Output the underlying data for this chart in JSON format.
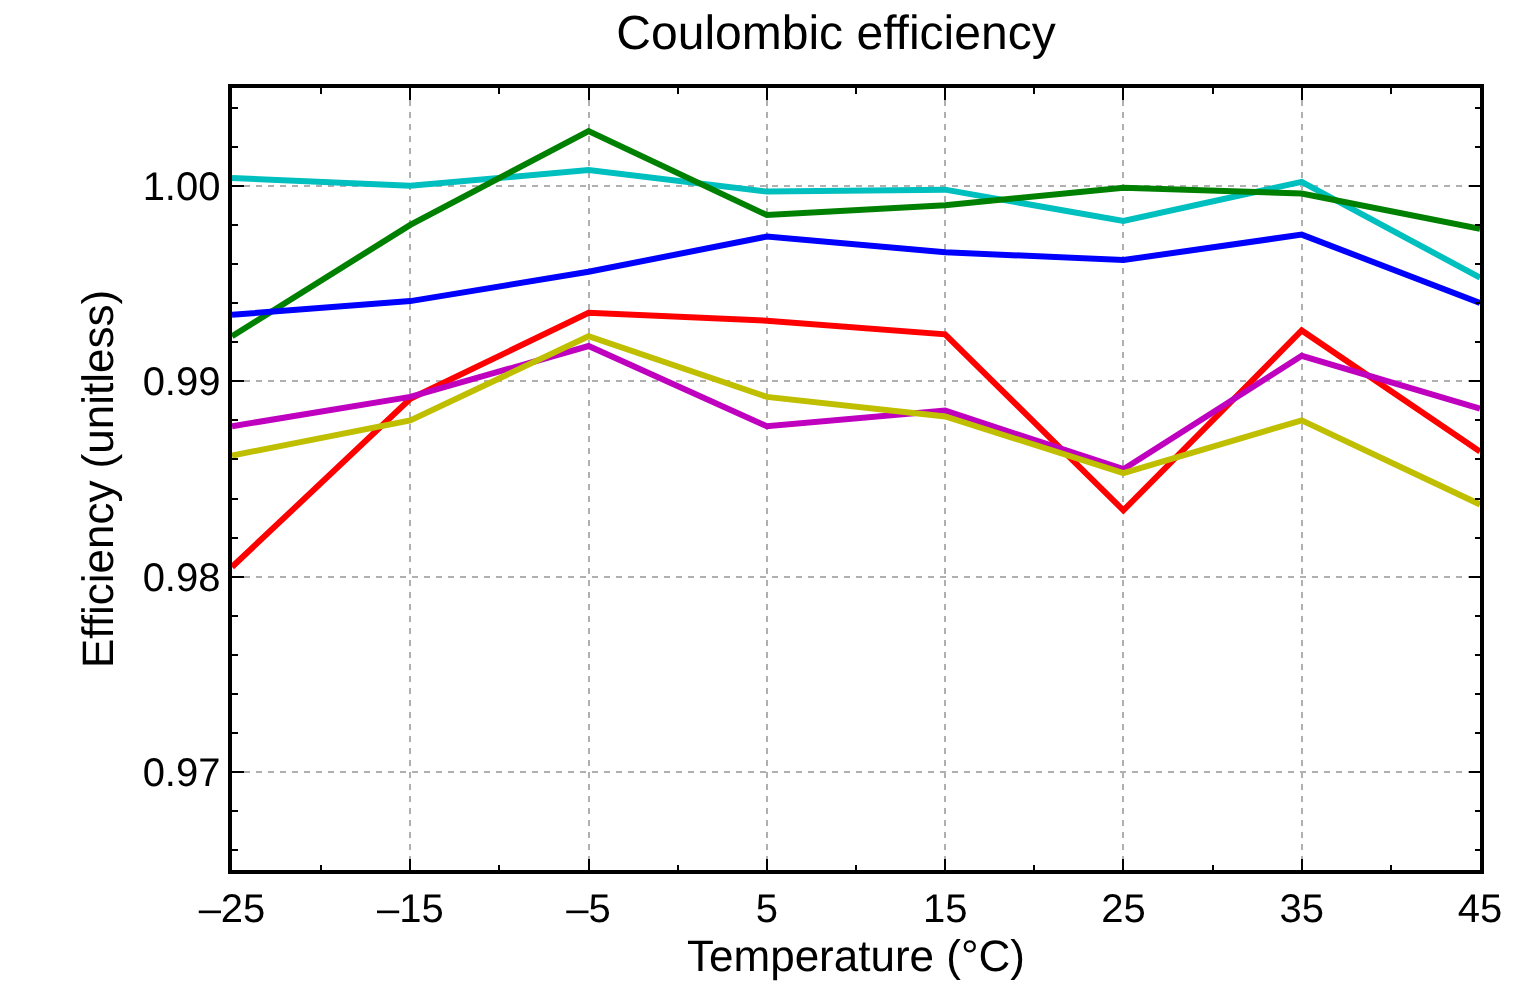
{
  "chart_data": {
    "type": "line",
    "title": "Coulombic efficiency",
    "xlabel": "Temperature (°C)",
    "ylabel": "Efficiency (unitless)",
    "x": [
      -25,
      -15,
      -5,
      5,
      15,
      25,
      35,
      45
    ],
    "series": [
      {
        "color": "#00bfbf",
        "values": [
          1.0004,
          1.0,
          1.0008,
          0.9997,
          0.9998,
          0.9982,
          1.0002,
          0.9953
        ]
      },
      {
        "color": "#008000",
        "values": [
          0.9923,
          0.998,
          1.0028,
          0.9985,
          0.999,
          0.9999,
          0.9996,
          0.9978
        ]
      },
      {
        "color": "#0000ff",
        "values": [
          0.9934,
          0.9941,
          0.9956,
          0.9974,
          0.9966,
          0.9962,
          0.9975,
          0.994
        ]
      },
      {
        "color": "#ff0000",
        "values": [
          0.9805,
          0.9891,
          0.9935,
          0.9931,
          0.9924,
          0.9834,
          0.9926,
          0.9864
        ]
      },
      {
        "color": "#bf00bf",
        "values": [
          0.9877,
          0.9892,
          0.9918,
          0.9877,
          0.9885,
          0.9855,
          0.9913,
          0.9886
        ]
      },
      {
        "color": "#bfbf00",
        "values": [
          0.9862,
          0.988,
          0.9923,
          0.9892,
          0.9882,
          0.9853,
          0.988,
          0.9837
        ]
      }
    ],
    "xlim": [
      -25,
      45
    ],
    "xticks": [
      {
        "value": -25,
        "label": "–25"
      },
      {
        "value": -15,
        "label": "–15"
      },
      {
        "value": -5,
        "label": "–5"
      },
      5,
      15,
      25,
      35,
      45
    ],
    "ylim": [
      0.965,
      1.005
    ],
    "yticks": [
      0.97,
      0.98,
      0.99,
      {
        "value": 1.0,
        "label": "1.00"
      }
    ],
    "grid": true,
    "marker": "none",
    "line_style": "solid"
  }
}
